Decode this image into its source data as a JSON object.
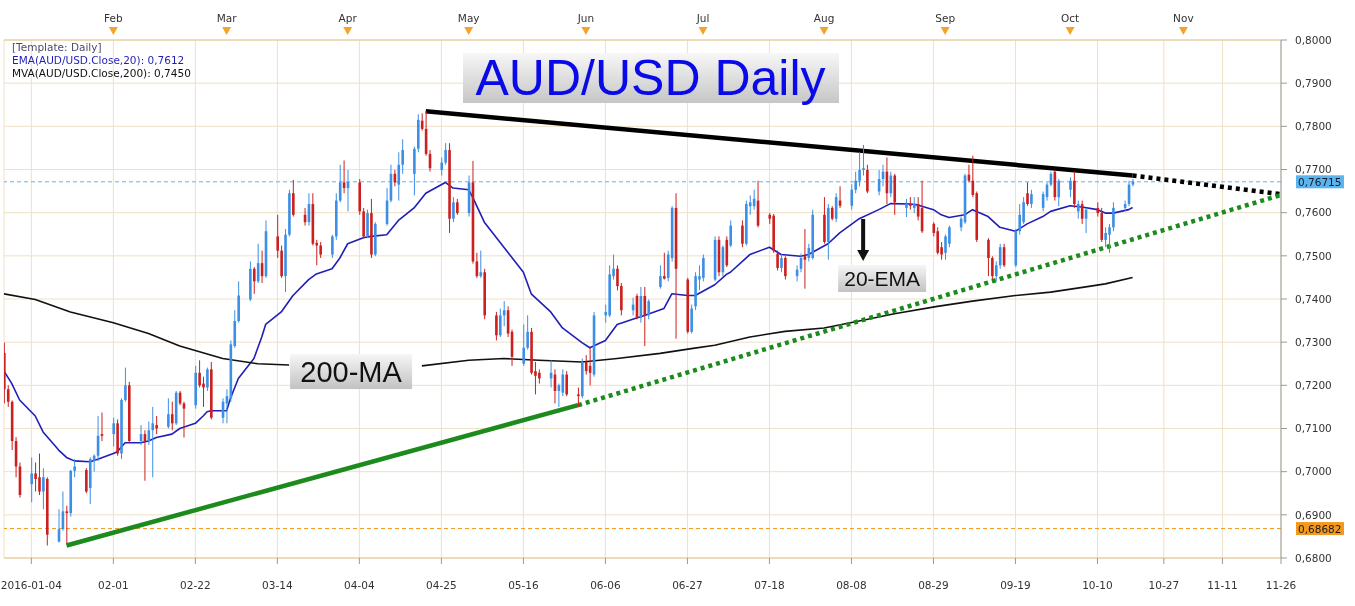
{
  "chart_data": {
    "type": "candlestick",
    "title": "AUD/USD Daily",
    "legend_title": "[Template: Daily]",
    "legend": "top left",
    "x": [
      "2016-01-04",
      "2016-01-05",
      "2016-01-06",
      "2016-01-07",
      "2016-01-08",
      "2016-01-11",
      "2016-01-12",
      "2016-01-13",
      "2016-01-14",
      "2016-01-15",
      "2016-01-18",
      "2016-01-19",
      "2016-01-20",
      "2016-01-21",
      "2016-01-22",
      "2016-01-25",
      "2016-01-26",
      "2016-01-27",
      "2016-01-28",
      "2016-01-29",
      "2016-02-01",
      "2016-02-02",
      "2016-02-03",
      "2016-02-04",
      "2016-02-05",
      "2016-02-08",
      "2016-02-09",
      "2016-02-10",
      "2016-02-11",
      "2016-02-12",
      "2016-02-15",
      "2016-02-16",
      "2016-02-17",
      "2016-02-18",
      "2016-02-19",
      "2016-02-22",
      "2016-02-23",
      "2016-02-24",
      "2016-02-25",
      "2016-02-26",
      "2016-02-29",
      "2016-03-01",
      "2016-03-02",
      "2016-03-03",
      "2016-03-04",
      "2016-03-07",
      "2016-03-08",
      "2016-03-09",
      "2016-03-10",
      "2016-03-11",
      "2016-03-14",
      "2016-03-15",
      "2016-03-16",
      "2016-03-17",
      "2016-03-18",
      "2016-03-21",
      "2016-03-22",
      "2016-03-23",
      "2016-03-24",
      "2016-03-25",
      "2016-03-28",
      "2016-03-29",
      "2016-03-30",
      "2016-03-31",
      "2016-04-01",
      "2016-04-04",
      "2016-04-05",
      "2016-04-06",
      "2016-04-07",
      "2016-04-08",
      "2016-04-11",
      "2016-04-12",
      "2016-04-13",
      "2016-04-14",
      "2016-04-15",
      "2016-04-18",
      "2016-04-19",
      "2016-04-20",
      "2016-04-21",
      "2016-04-22",
      "2016-04-25",
      "2016-04-26",
      "2016-04-27",
      "2016-04-28",
      "2016-04-29",
      "2016-05-02",
      "2016-05-03",
      "2016-05-04",
      "2016-05-05",
      "2016-05-06",
      "2016-05-09",
      "2016-05-10",
      "2016-05-11",
      "2016-05-12",
      "2016-05-13",
      "2016-05-16",
      "2016-05-17",
      "2016-05-18",
      "2016-05-19",
      "2016-05-20",
      "2016-05-23",
      "2016-05-24",
      "2016-05-25",
      "2016-05-26",
      "2016-05-27",
      "2016-05-30",
      "2016-05-31",
      "2016-06-01",
      "2016-06-02",
      "2016-06-03",
      "2016-06-06",
      "2016-06-07",
      "2016-06-08",
      "2016-06-09",
      "2016-06-10",
      "2016-06-13",
      "2016-06-14",
      "2016-06-15",
      "2016-06-16",
      "2016-06-17",
      "2016-06-20",
      "2016-06-21",
      "2016-06-22",
      "2016-06-23",
      "2016-06-24",
      "2016-06-27",
      "2016-06-28",
      "2016-06-29",
      "2016-06-30",
      "2016-07-01",
      "2016-07-04",
      "2016-07-05",
      "2016-07-06",
      "2016-07-07",
      "2016-07-08",
      "2016-07-11",
      "2016-07-12",
      "2016-07-13",
      "2016-07-14",
      "2016-07-15",
      "2016-07-18",
      "2016-07-19",
      "2016-07-20",
      "2016-07-21",
      "2016-07-22",
      "2016-07-25",
      "2016-07-26",
      "2016-07-27",
      "2016-07-28",
      "2016-07-29",
      "2016-08-01",
      "2016-08-02",
      "2016-08-03",
      "2016-08-04",
      "2016-08-05",
      "2016-08-08",
      "2016-08-09",
      "2016-08-10",
      "2016-08-11",
      "2016-08-12",
      "2016-08-15",
      "2016-08-16",
      "2016-08-17",
      "2016-08-18",
      "2016-08-19",
      "2016-08-22",
      "2016-08-23",
      "2016-08-24",
      "2016-08-25",
      "2016-08-26",
      "2016-08-29",
      "2016-08-30",
      "2016-08-31",
      "2016-09-01",
      "2016-09-02",
      "2016-09-05",
      "2016-09-06",
      "2016-09-07",
      "2016-09-08",
      "2016-09-09",
      "2016-09-12",
      "2016-09-13",
      "2016-09-14",
      "2016-09-15",
      "2016-09-16",
      "2016-09-19",
      "2016-09-20",
      "2016-09-21",
      "2016-09-22",
      "2016-09-23",
      "2016-09-26",
      "2016-09-27",
      "2016-09-28",
      "2016-09-29",
      "2016-09-30",
      "2016-10-03",
      "2016-10-04",
      "2016-10-05",
      "2016-10-06",
      "2016-10-07",
      "2016-10-10",
      "2016-10-11",
      "2016-10-12",
      "2016-10-13",
      "2016-10-14",
      "2016-10-17",
      "2016-10-18",
      "2016-10-19"
    ],
    "ohlc": [
      [
        0.7275,
        0.7299,
        0.7158,
        0.7191
      ],
      [
        0.7191,
        0.72,
        0.715,
        0.7162
      ],
      [
        0.7162,
        0.7165,
        0.705,
        0.7071
      ],
      [
        0.7071,
        0.708,
        0.6987,
        0.7012
      ],
      [
        0.7012,
        0.7021,
        0.694,
        0.6946
      ],
      [
        0.6971,
        0.7033,
        0.6929,
        0.6996
      ],
      [
        0.6996,
        0.7021,
        0.6954,
        0.6983
      ],
      [
        0.6987,
        0.7042,
        0.6946,
        0.6954
      ],
      [
        0.6954,
        0.7008,
        0.6913,
        0.6987
      ],
      [
        0.6983,
        0.6987,
        0.6829,
        0.6854
      ],
      [
        0.6838,
        0.6913,
        0.6836,
        0.6867
      ],
      [
        0.6867,
        0.6954,
        0.6863,
        0.6908
      ],
      [
        0.6908,
        0.6921,
        0.6833,
        0.6904
      ],
      [
        0.6904,
        0.7004,
        0.6896,
        0.7002
      ],
      [
        0.7002,
        0.7029,
        0.6987,
        0.7012
      ],
      [
        0.7004,
        0.7008,
        0.695,
        0.6954
      ],
      [
        0.6962,
        0.7033,
        0.6925,
        0.7029
      ],
      [
        0.7025,
        0.704,
        0.7,
        0.7037
      ],
      [
        0.7037,
        0.7129,
        0.7025,
        0.7083
      ],
      [
        0.7087,
        0.7137,
        0.7071,
        0.7083
      ],
      [
        0.7087,
        0.7125,
        0.7058,
        0.7112
      ],
      [
        0.7112,
        0.7121,
        0.7037,
        0.7042
      ],
      [
        0.7042,
        0.717,
        0.7029,
        0.7166
      ],
      [
        0.7166,
        0.7241,
        0.7162,
        0.72
      ],
      [
        0.72,
        0.7208,
        0.7067,
        0.7071
      ],
      [
        0.7071,
        0.7108,
        0.7062,
        0.7087
      ],
      [
        0.7087,
        0.7096,
        0.6979,
        0.7071
      ],
      [
        0.7071,
        0.7116,
        0.7062,
        0.7096
      ],
      [
        0.7096,
        0.715,
        0.6987,
        0.7112
      ],
      [
        0.7108,
        0.7129,
        0.7087,
        0.71
      ],
      [
        0.7104,
        0.717,
        0.71,
        0.7133
      ],
      [
        0.7133,
        0.7162,
        0.7096,
        0.7112
      ],
      [
        0.7112,
        0.7187,
        0.7108,
        0.7183
      ],
      [
        0.7183,
        0.7187,
        0.7154,
        0.7158
      ],
      [
        0.7158,
        0.7162,
        0.7079,
        0.7146
      ],
      [
        0.7154,
        0.7245,
        0.7146,
        0.7229
      ],
      [
        0.7229,
        0.7258,
        0.7195,
        0.72
      ],
      [
        0.7204,
        0.722,
        0.715,
        0.7195
      ],
      [
        0.7195,
        0.7241,
        0.7187,
        0.7237
      ],
      [
        0.7237,
        0.7254,
        0.7121,
        0.7125
      ],
      [
        0.7125,
        0.717,
        0.7112,
        0.7162
      ],
      [
        0.7158,
        0.7191,
        0.7112,
        0.7175
      ],
      [
        0.717,
        0.7304,
        0.7162,
        0.7295
      ],
      [
        0.7291,
        0.7374,
        0.7287,
        0.7349
      ],
      [
        0.7349,
        0.7441,
        0.7345,
        0.7408
      ],
      [
        0.7399,
        0.7487,
        0.7395,
        0.747
      ],
      [
        0.747,
        0.7474,
        0.7412,
        0.7441
      ],
      [
        0.7441,
        0.7528,
        0.7437,
        0.7483
      ],
      [
        0.7483,
        0.7512,
        0.7437,
        0.7453
      ],
      [
        0.7453,
        0.7582,
        0.7449,
        0.7557
      ],
      [
        0.7545,
        0.7595,
        0.7495,
        0.7512
      ],
      [
        0.7512,
        0.7524,
        0.7449,
        0.7453
      ],
      [
        0.7453,
        0.7562,
        0.7416,
        0.7549
      ],
      [
        0.7549,
        0.7653,
        0.7545,
        0.7645
      ],
      [
        0.7645,
        0.7676,
        0.7591,
        0.7595
      ],
      [
        0.7595,
        0.7611,
        0.757,
        0.7578
      ],
      [
        0.7578,
        0.7645,
        0.757,
        0.762
      ],
      [
        0.762,
        0.7645,
        0.7524,
        0.7528
      ],
      [
        0.753,
        0.7537,
        0.7478,
        0.7524
      ],
      [
        0.7524,
        0.7532,
        0.7495,
        0.7503
      ],
      [
        0.7503,
        0.7549,
        0.7495,
        0.7545
      ],
      [
        0.7545,
        0.7645,
        0.7537,
        0.7628
      ],
      [
        0.7628,
        0.7711,
        0.7624,
        0.767
      ],
      [
        0.767,
        0.7721,
        0.7645,
        0.7657
      ],
      [
        0.7657,
        0.7699,
        0.7603,
        0.7671
      ],
      [
        0.767,
        0.7678,
        0.7595,
        0.7603
      ],
      [
        0.7603,
        0.7611,
        0.7541,
        0.7545
      ],
      [
        0.7545,
        0.7607,
        0.7541,
        0.7599
      ],
      [
        0.7599,
        0.7632,
        0.7495,
        0.7503
      ],
      [
        0.7503,
        0.7578,
        0.7499,
        0.7574
      ],
      [
        0.7574,
        0.7657,
        0.757,
        0.7628
      ],
      [
        0.7628,
        0.7711,
        0.7624,
        0.769
      ],
      [
        0.769,
        0.7699,
        0.7661,
        0.767
      ],
      [
        0.7665,
        0.774,
        0.7628,
        0.7711
      ],
      [
        0.7711,
        0.777,
        0.769,
        0.7745
      ],
      [
        0.769,
        0.7753,
        0.764,
        0.7748
      ],
      [
        0.7748,
        0.7828,
        0.774,
        0.7815
      ],
      [
        0.7813,
        0.783,
        0.779,
        0.7794
      ],
      [
        0.7794,
        0.7835,
        0.7732,
        0.7736
      ],
      [
        0.7736,
        0.7745,
        0.7695,
        0.7703
      ],
      [
        0.7699,
        0.7728,
        0.7686,
        0.7716
      ],
      [
        0.7716,
        0.7761,
        0.7711,
        0.7745
      ],
      [
        0.7745,
        0.7761,
        0.7553,
        0.7586
      ],
      [
        0.7586,
        0.7636,
        0.7578,
        0.7624
      ],
      [
        0.7624,
        0.7632,
        0.7595,
        0.7599
      ],
      [
        0.7599,
        0.7686,
        0.7591,
        0.767
      ],
      [
        0.767,
        0.772,
        0.7482,
        0.7487
      ],
      [
        0.7487,
        0.7507,
        0.7449,
        0.7453
      ],
      [
        0.7453,
        0.7512,
        0.7449,
        0.7462
      ],
      [
        0.7462,
        0.747,
        0.7353,
        0.7362
      ],
      [
        0.7362,
        0.737,
        0.7304,
        0.7316
      ],
      [
        0.7316,
        0.7378,
        0.7312,
        0.7362
      ],
      [
        0.7362,
        0.7395,
        0.7337,
        0.7374
      ],
      [
        0.7374,
        0.7383,
        0.7312,
        0.732
      ],
      [
        0.7324,
        0.7329,
        0.7245,
        0.7266
      ],
      [
        0.725,
        0.7341,
        0.7245,
        0.7287
      ],
      [
        0.7287,
        0.7362,
        0.7283,
        0.7324
      ],
      [
        0.7324,
        0.7333,
        0.7225,
        0.7229
      ],
      [
        0.7233,
        0.7254,
        0.7179,
        0.7222
      ],
      [
        0.7229,
        0.7237,
        0.7204,
        0.7216
      ],
      [
        0.7216,
        0.7258,
        0.7195,
        0.7229
      ],
      [
        0.7225,
        0.7237,
        0.7158,
        0.7187
      ],
      [
        0.7187,
        0.7204,
        0.715,
        0.72
      ],
      [
        0.7183,
        0.7237,
        0.7175,
        0.7225
      ],
      [
        0.7225,
        0.7233,
        0.7175,
        0.7179
      ],
      [
        0.7179,
        0.7195,
        0.715,
        0.7175
      ],
      [
        0.7175,
        0.7262,
        0.717,
        0.7254
      ],
      [
        0.7254,
        0.727,
        0.7225,
        0.7233
      ],
      [
        0.7245,
        0.7287,
        0.72,
        0.7229
      ],
      [
        0.7225,
        0.737,
        0.722,
        0.7362
      ],
      [
        0.7362,
        0.7387,
        0.7345,
        0.737
      ],
      [
        0.7362,
        0.7478,
        0.7358,
        0.7457
      ],
      [
        0.7453,
        0.7503,
        0.7445,
        0.747
      ],
      [
        0.747,
        0.7478,
        0.742,
        0.743
      ],
      [
        0.743,
        0.7437,
        0.7362,
        0.7374
      ],
      [
        0.7374,
        0.7403,
        0.7362,
        0.7387
      ],
      [
        0.7407,
        0.7412,
        0.7353,
        0.7357
      ],
      [
        0.7357,
        0.7428,
        0.7345,
        0.7407
      ],
      [
        0.7407,
        0.7428,
        0.7291,
        0.7362
      ],
      [
        0.7362,
        0.7399,
        0.7353,
        0.7395
      ],
      [
        0.7428,
        0.7478,
        0.7424,
        0.7453
      ],
      [
        0.7453,
        0.7507,
        0.7445,
        0.7447
      ],
      [
        0.7449,
        0.7512,
        0.7441,
        0.7503
      ],
      [
        0.7495,
        0.7615,
        0.7487,
        0.7611
      ],
      [
        0.7611,
        0.7645,
        0.7308,
        0.747
      ],
      [
        0.7445,
        0.7449,
        0.732,
        0.7324
      ],
      [
        0.7324,
        0.7387,
        0.732,
        0.7378
      ],
      [
        0.7383,
        0.7462,
        0.7374,
        0.7453
      ],
      [
        0.7445,
        0.7478,
        0.742,
        0.7453
      ],
      [
        0.7449,
        0.7503,
        0.7441,
        0.7495
      ],
      [
        0.7445,
        0.7545,
        0.7441,
        0.7537
      ],
      [
        0.7537,
        0.7545,
        0.7453,
        0.7462
      ],
      [
        0.7462,
        0.7524,
        0.7453,
        0.752
      ],
      [
        0.7537,
        0.7545,
        0.7474,
        0.7478
      ],
      [
        0.7524,
        0.7582,
        0.752,
        0.757
      ],
      [
        0.757,
        0.7582,
        0.752,
        0.7528
      ],
      [
        0.7528,
        0.7628,
        0.7524,
        0.762
      ],
      [
        0.7615,
        0.764,
        0.7595,
        0.7624
      ],
      [
        0.7615,
        0.7653,
        0.7607,
        0.7632
      ],
      [
        0.7628,
        0.7674,
        0.7566,
        0.757
      ],
      [
        0.7595,
        0.7599,
        0.7574,
        0.7586
      ],
      [
        0.7593,
        0.7597,
        0.7507,
        0.7512
      ],
      [
        0.7505,
        0.7512,
        0.7466,
        0.7472
      ],
      [
        0.7472,
        0.7503,
        0.7462,
        0.7495
      ],
      [
        0.7495,
        0.7499,
        0.7445,
        0.7453
      ],
      [
        0.7453,
        0.7478,
        0.7441,
        0.7468
      ],
      [
        0.747,
        0.7505,
        0.7462,
        0.7495
      ],
      [
        0.7499,
        0.7562,
        0.7424,
        0.7491
      ],
      [
        0.7495,
        0.7528,
        0.7487,
        0.7518
      ],
      [
        0.7495,
        0.7607,
        0.7491,
        0.7595
      ],
      [
        0.7595,
        0.7636,
        0.7528,
        0.7532
      ],
      [
        0.7532,
        0.762,
        0.7491,
        0.7611
      ],
      [
        0.7611,
        0.7615,
        0.7582,
        0.7586
      ],
      [
        0.7586,
        0.7645,
        0.7578,
        0.7636
      ],
      [
        0.7628,
        0.7661,
        0.7611,
        0.7616
      ],
      [
        0.7616,
        0.7666,
        0.7607,
        0.7653
      ],
      [
        0.7653,
        0.7695,
        0.7645,
        0.7674
      ],
      [
        0.7674,
        0.774,
        0.7661,
        0.7699
      ],
      [
        0.7699,
        0.7757,
        0.7686,
        0.7703
      ],
      [
        0.7699,
        0.7711,
        0.7645,
        0.7649
      ],
      [
        0.7649,
        0.7699,
        0.764,
        0.7678
      ],
      [
        0.7678,
        0.7711,
        0.7661,
        0.7695
      ],
      [
        0.7695,
        0.7728,
        0.762,
        0.7645
      ],
      [
        0.7645,
        0.7695,
        0.7636,
        0.7686
      ],
      [
        0.7686,
        0.769,
        0.7595,
        0.7624
      ],
      [
        0.7611,
        0.7632,
        0.759,
        0.762
      ],
      [
        0.762,
        0.7636,
        0.7607,
        0.7616
      ],
      [
        0.7611,
        0.7636,
        0.7599,
        0.762
      ],
      [
        0.762,
        0.7636,
        0.7582,
        0.7591
      ],
      [
        0.7611,
        0.7674,
        0.7553,
        0.7557
      ],
      [
        0.7574,
        0.7578,
        0.7545,
        0.7553
      ],
      [
        0.7557,
        0.7566,
        0.7503,
        0.7507
      ],
      [
        0.752,
        0.7532,
        0.7491,
        0.7503
      ],
      [
        0.7507,
        0.7549,
        0.7491,
        0.7545
      ],
      [
        0.7528,
        0.757,
        0.752,
        0.7566
      ],
      [
        0.7566,
        0.7591,
        0.7557,
        0.7586
      ],
      [
        0.7578,
        0.769,
        0.7574,
        0.7686
      ],
      [
        0.7688,
        0.7711,
        0.767,
        0.7674
      ],
      [
        0.7674,
        0.7732,
        0.7636,
        0.7641
      ],
      [
        0.7645,
        0.7649,
        0.7532,
        0.7537
      ],
      [
        0.7537,
        0.7541,
        0.7453,
        0.7495
      ],
      [
        0.7495,
        0.7499,
        0.7445,
        0.7453
      ],
      [
        0.7453,
        0.7487,
        0.7441,
        0.7478
      ],
      [
        0.7478,
        0.7528,
        0.747,
        0.752
      ],
      [
        0.752,
        0.7528,
        0.7474,
        0.7478
      ],
      [
        0.7478,
        0.7562,
        0.7474,
        0.7557
      ],
      [
        0.7557,
        0.762,
        0.7549,
        0.7595
      ],
      [
        0.7578,
        0.7636,
        0.7574,
        0.7624
      ],
      [
        0.7645,
        0.767,
        0.7616,
        0.762
      ],
      [
        0.762,
        0.7653,
        0.7611,
        0.7643
      ],
      [
        0.7611,
        0.7649,
        0.7603,
        0.7643
      ],
      [
        0.7636,
        0.767,
        0.7628,
        0.7665
      ],
      [
        0.7665,
        0.7695,
        0.7661,
        0.769
      ],
      [
        0.7695,
        0.7699,
        0.7628,
        0.7636
      ],
      [
        0.7636,
        0.7678,
        0.7615,
        0.7674
      ],
      [
        0.7653,
        0.7682,
        0.7636,
        0.7674
      ],
      [
        0.7674,
        0.7695,
        0.7611,
        0.762
      ],
      [
        0.7603,
        0.7628,
        0.7586,
        0.762
      ],
      [
        0.762,
        0.7628,
        0.7574,
        0.7586
      ],
      [
        0.7586,
        0.7611,
        0.7553,
        0.7607
      ],
      [
        0.7611,
        0.7624,
        0.7591,
        0.7599
      ],
      [
        0.7599,
        0.7611,
        0.7532,
        0.7537
      ],
      [
        0.7537,
        0.7566,
        0.752,
        0.7553
      ],
      [
        0.7549,
        0.7574,
        0.7507,
        0.7566
      ],
      [
        0.7566,
        0.7624,
        0.7557,
        0.7611
      ],
      [
        0.7611,
        0.7628,
        0.7603,
        0.762
      ],
      [
        0.762,
        0.7674,
        0.7615,
        0.7665
      ],
      [
        0.7665,
        0.7678,
        0.7661,
        0.7672
      ]
    ],
    "colors": [
      "#cc1f1f",
      "#cc1f1f",
      "#cc1f1f",
      "#cc1f1f",
      "#cc1f1f",
      "#3b8fe6",
      "#cc1f1f",
      "#cc1f1f",
      "#3b8fe6",
      "#cc1f1f",
      "#3b8fe6",
      "#3b8fe6",
      "#cc1f1f",
      "#3b8fe6",
      "#3b8fe6",
      "#cc1f1f",
      "#3b8fe6",
      "#3b8fe6",
      "#3b8fe6",
      "#cc1f1f",
      "#3b8fe6",
      "#cc1f1f",
      "#3b8fe6",
      "#3b8fe6",
      "#cc1f1f",
      "#3b8fe6",
      "#cc1f1f",
      "#3b8fe6",
      "#3b8fe6",
      "#cc1f1f",
      "#3b8fe6",
      "#cc1f1f",
      "#3b8fe6",
      "#cc1f1f",
      "#cc1f1f",
      "#3b8fe6",
      "#cc1f1f",
      "#cc1f1f",
      "#3b8fe6",
      "#cc1f1f",
      "#3b8fe6",
      "#3b8fe6",
      "#3b8fe6",
      "#3b8fe6",
      "#3b8fe6",
      "#3b8fe6",
      "#cc1f1f",
      "#3b8fe6",
      "#cc1f1f",
      "#3b8fe6",
      "#cc1f1f",
      "#cc1f1f",
      "#3b8fe6",
      "#3b8fe6",
      "#cc1f1f",
      "#cc1f1f",
      "#3b8fe6",
      "#cc1f1f",
      "#cc1f1f",
      "#cc1f1f",
      "#3b8fe6",
      "#3b8fe6",
      "#3b8fe6",
      "#cc1f1f",
      "#3b8fe6",
      "#cc1f1f",
      "#cc1f1f",
      "#3b8fe6",
      "#cc1f1f",
      "#3b8fe6",
      "#3b8fe6",
      "#3b8fe6",
      "#cc1f1f",
      "#3b8fe6",
      "#3b8fe6",
      "#3b8fe6",
      "#3b8fe6",
      "#cc1f1f",
      "#cc1f1f",
      "#cc1f1f",
      "#3b8fe6",
      "#3b8fe6",
      "#cc1f1f",
      "#3b8fe6",
      "#cc1f1f",
      "#3b8fe6",
      "#cc1f1f",
      "#cc1f1f",
      "#3b8fe6",
      "#cc1f1f",
      "#cc1f1f",
      "#3b8fe6",
      "#3b8fe6",
      "#cc1f1f",
      "#cc1f1f",
      "#3b8fe6",
      "#3b8fe6",
      "#cc1f1f",
      "#cc1f1f",
      "#cc1f1f",
      "#3b8fe6",
      "#cc1f1f",
      "#3b8fe6",
      "#3b8fe6",
      "#cc1f1f",
      "#cc1f1f",
      "#3b8fe6",
      "#cc1f1f",
      "#cc1f1f",
      "#3b8fe6",
      "#3b8fe6",
      "#3b8fe6",
      "#3b8fe6",
      "#cc1f1f",
      "#cc1f1f",
      "#3b8fe6",
      "#cc1f1f",
      "#3b8fe6",
      "#cc1f1f",
      "#3b8fe6",
      "#3b8fe6",
      "#cc1f1f",
      "#3b8fe6",
      "#3b8fe6",
      "#cc1f1f",
      "#cc1f1f",
      "#3b8fe6",
      "#3b8fe6",
      "#3b8fe6",
      "#3b8fe6",
      "#3b8fe6",
      "#cc1f1f",
      "#3b8fe6",
      "#cc1f1f",
      "#3b8fe6",
      "#cc1f1f",
      "#3b8fe6",
      "#3b8fe6",
      "#3b8fe6",
      "#cc1f1f",
      "#cc1f1f",
      "#cc1f1f",
      "#cc1f1f",
      "#3b8fe6",
      "#cc1f1f",
      "#3b8fe6",
      "#3b8fe6",
      "#cc1f1f",
      "#3b8fe6",
      "#3b8fe6",
      "#cc1f1f",
      "#3b8fe6",
      "#cc1f1f",
      "#3b8fe6",
      "#cc1f1f",
      "#3b8fe6",
      "#3b8fe6",
      "#3b8fe6",
      "#3b8fe6",
      "#cc1f1f",
      "#3b8fe6",
      "#3b8fe6",
      "#cc1f1f",
      "#3b8fe6",
      "#cc1f1f",
      "#3b8fe6",
      "#cc1f1f",
      "#3b8fe6",
      "#cc1f1f",
      "#cc1f1f",
      "#cc1f1f",
      "#cc1f1f",
      "#cc1f1f",
      "#3b8fe6",
      "#3b8fe6",
      "#3b8fe6",
      "#3b8fe6",
      "#cc1f1f",
      "#cc1f1f",
      "#cc1f1f",
      "#cc1f1f",
      "#cc1f1f",
      "#3b8fe6",
      "#3b8fe6",
      "#cc1f1f",
      "#3b8fe6",
      "#3b8fe6",
      "#3b8fe6",
      "#cc1f1f",
      "#3b8fe6",
      "#3b8fe6",
      "#3b8fe6",
      "#3b8fe6",
      "#cc1f1f",
      "#3b8fe6",
      "#3b8fe6",
      "#cc1f1f",
      "#3b8fe6",
      "#cc1f1f",
      "#3b8fe6",
      "#cc1f1f",
      "#cc1f1f",
      "#3b8fe6",
      "#3b8fe6",
      "#3b8fe6",
      "#3b8fe6",
      "#3b8fe6",
      "#3b8fe6"
    ],
    "series": [
      {
        "name": "EMA(AUD/USD.Close,20): 0,7612",
        "type": "line",
        "color": "#1f1fb8",
        "x": [
          "2016-01-04",
          "2016-01-06",
          "2016-01-08",
          "2016-01-12",
          "2016-01-14",
          "2016-01-18",
          "2016-01-20",
          "2016-01-22",
          "2016-01-26",
          "2016-01-28",
          "2016-02-01",
          "2016-02-02",
          "2016-02-04",
          "2016-02-08",
          "2016-02-10",
          "2016-02-12",
          "2016-02-16",
          "2016-02-18",
          "2016-02-22",
          "2016-02-24",
          "2016-02-25",
          "2016-02-26",
          "2016-03-01",
          "2016-03-02",
          "2016-03-04",
          "2016-03-08",
          "2016-03-10",
          "2016-03-11",
          "2016-03-15",
          "2016-03-18",
          "2016-03-22",
          "2016-03-24",
          "2016-03-28",
          "2016-03-30",
          "2016-04-01",
          "2016-04-05",
          "2016-04-07",
          "2016-04-11",
          "2016-04-14",
          "2016-04-18",
          "2016-04-21",
          "2016-04-26",
          "2016-04-28",
          "2016-05-02",
          "2016-05-03",
          "2016-05-06",
          "2016-05-11",
          "2016-05-16",
          "2016-05-18",
          "2016-05-23",
          "2016-05-26",
          "2016-05-31",
          "2016-06-02",
          "2016-06-06",
          "2016-06-09",
          "2016-06-13",
          "2016-06-16",
          "2016-06-21",
          "2016-06-23",
          "2016-06-27",
          "2016-06-29",
          "2016-07-04",
          "2016-07-07",
          "2016-07-08",
          "2016-07-13",
          "2016-07-18",
          "2016-07-21",
          "2016-07-26",
          "2016-07-28",
          "2016-08-02",
          "2016-08-05",
          "2016-08-10",
          "2016-08-15",
          "2016-08-18",
          "2016-08-23",
          "2016-08-25",
          "2016-08-29",
          "2016-08-31",
          "2016-09-02",
          "2016-09-06",
          "2016-09-08",
          "2016-09-12",
          "2016-09-15",
          "2016-09-19",
          "2016-09-22",
          "2016-09-26",
          "2016-09-28",
          "2016-10-03",
          "2016-10-06",
          "2016-10-10",
          "2016-10-12",
          "2016-10-14",
          "2016-10-18",
          "2016-10-19"
        ],
        "values": [
          0.7233,
          0.7204,
          0.7166,
          0.7129,
          0.7092,
          0.705,
          0.7033,
          0.7025,
          0.7023,
          0.7029,
          0.7042,
          0.7046,
          0.7067,
          0.7067,
          0.7071,
          0.7079,
          0.7087,
          0.71,
          0.7112,
          0.7129,
          0.7139,
          0.7141,
          0.7141,
          0.717,
          0.7216,
          0.7262,
          0.7312,
          0.7341,
          0.737,
          0.7408,
          0.7445,
          0.7458,
          0.747,
          0.7495,
          0.7528,
          0.7542,
          0.7545,
          0.7549,
          0.7582,
          0.7611,
          0.7645,
          0.767,
          0.7657,
          0.7653,
          0.7636,
          0.7578,
          0.752,
          0.7462,
          0.7412,
          0.737,
          0.7333,
          0.7299,
          0.7287,
          0.7304,
          0.7341,
          0.7353,
          0.7362,
          0.7378,
          0.7412,
          0.7408,
          0.7408,
          0.7433,
          0.7457,
          0.7462,
          0.7503,
          0.752,
          0.7503,
          0.7499,
          0.7503,
          0.7528,
          0.7553,
          0.7586,
          0.7607,
          0.7621,
          0.762,
          0.7618,
          0.7607,
          0.7595,
          0.7589,
          0.7595,
          0.7607,
          0.7591,
          0.7566,
          0.7557,
          0.7574,
          0.7591,
          0.7603,
          0.7616,
          0.7613,
          0.7607,
          0.7599,
          0.7599,
          0.7607,
          0.7612
        ]
      },
      {
        "name": "MVA(AUD/USD.Close,200): 0,7450",
        "type": "line",
        "color": "#111111",
        "x": [
          "2016-01-04",
          "2016-01-12",
          "2016-01-21",
          "2016-02-01",
          "2016-02-10",
          "2016-02-18",
          "2016-02-29",
          "2016-03-09",
          "2016-03-17",
          "2016-04-04",
          "2016-04-20",
          "2016-05-02",
          "2016-05-11",
          "2016-05-20",
          "2016-05-31",
          "2016-06-09",
          "2016-06-20",
          "2016-06-28",
          "2016-07-04",
          "2016-07-13",
          "2016-07-22",
          "2016-08-01",
          "2016-08-10",
          "2016-08-19",
          "2016-08-30",
          "2016-09-08",
          "2016-09-19",
          "2016-09-28",
          "2016-10-07",
          "2016-10-12",
          "2016-10-19"
        ],
        "values": [
          0.7412,
          0.7399,
          0.737,
          0.7345,
          0.732,
          0.7291,
          0.7262,
          0.725,
          0.7247,
          null,
          0.7245,
          0.7258,
          0.7262,
          0.7258,
          0.7254,
          0.7262,
          0.7274,
          0.7285,
          0.7293,
          0.7312,
          0.7325,
          0.7333,
          0.7349,
          0.7366,
          0.7383,
          0.7395,
          0.7408,
          0.7416,
          0.7428,
          0.7435,
          0.745
        ]
      },
      {
        "type": "line",
        "color": "#000000",
        "line_style": "solid",
        "x": [
          "2016-04-21",
          "2016-10-19"
        ],
        "values": [
          0.7835,
          0.7686
        ]
      },
      {
        "type": "line",
        "color": "#000000",
        "line_style": "dotted",
        "x": [
          "2016-10-19",
          "2016-11-26"
        ],
        "values": [
          0.7686,
          0.7643
        ]
      },
      {
        "type": "line",
        "color": "#1c8a1c",
        "line_style": "solid",
        "x": [
          "2016-01-20",
          "2016-05-30"
        ],
        "values": [
          0.6829,
          0.7154
        ]
      },
      {
        "type": "line",
        "color": "#1c8a1c",
        "line_style": "dotted",
        "x": [
          "2016-05-30",
          "2016-11-26"
        ],
        "values": [
          0.7154,
          0.7641
        ]
      }
    ],
    "xlim": [
      "2016-01-04",
      "2016-11-26"
    ],
    "xticks": [
      {
        "value": "2016-01-11",
        "label": "2016-01-04"
      },
      {
        "value": "2016-02-01",
        "label": "02-01"
      },
      {
        "value": "2016-02-22",
        "label": "02-22"
      },
      {
        "value": "2016-03-14",
        "label": "03-14"
      },
      {
        "value": "2016-04-04",
        "label": "04-04"
      },
      {
        "value": "2016-04-25",
        "label": "04-25"
      },
      {
        "value": "2016-05-16",
        "label": "05-16"
      },
      {
        "value": "2016-06-06",
        "label": "06-06"
      },
      {
        "value": "2016-06-27",
        "label": "06-27"
      },
      {
        "value": "2016-07-18",
        "label": "07-18"
      },
      {
        "value": "2016-08-08",
        "label": "08-08"
      },
      {
        "value": "2016-08-29",
        "label": "08-29"
      },
      {
        "value": "2016-09-19",
        "label": "09-19"
      },
      {
        "value": "2016-10-10",
        "label": "10-10"
      },
      {
        "value": "2016-10-27",
        "label": "10-27"
      },
      {
        "value": "2016-11-11",
        "label": "11-11"
      },
      {
        "value": "2016-11-26",
        "label": "11-26"
      }
    ],
    "x2lim": [
      "2016-01-04",
      "2016-11-26"
    ],
    "x2ticks": [
      {
        "value": "2016-02-01",
        "label": "Feb"
      },
      {
        "value": "2016-03-01",
        "label": "Mar"
      },
      {
        "value": "2016-04-01",
        "label": "Apr"
      },
      {
        "value": "2016-05-02",
        "label": "May"
      },
      {
        "value": "2016-06-01",
        "label": "Jun"
      },
      {
        "value": "2016-07-01",
        "label": "Jul"
      },
      {
        "value": "2016-08-01",
        "label": "Aug"
      },
      {
        "value": "2016-09-01",
        "label": "Sep"
      },
      {
        "value": "2016-10-03",
        "label": "Oct"
      },
      {
        "value": "2016-11-01",
        "label": "Nov"
      }
    ],
    "ylim": [
      0.68,
      0.8
    ],
    "yticks": [
      {
        "value": 0.68,
        "label": "0,6800"
      },
      {
        "value": 0.69,
        "label": "0,6900"
      },
      {
        "value": 0.7,
        "label": "0,7000"
      },
      {
        "value": 0.71,
        "label": "0,7100"
      },
      {
        "value": 0.72,
        "label": "0,7200"
      },
      {
        "value": 0.73,
        "label": "0,7300"
      },
      {
        "value": 0.74,
        "label": "0,7400"
      },
      {
        "value": 0.75,
        "label": "0,7500"
      },
      {
        "value": 0.76,
        "label": "0,7600"
      },
      {
        "value": 0.77,
        "label": "0,7700"
      },
      {
        "value": 0.78,
        "label": "0,7800"
      },
      {
        "value": 0.79,
        "label": "0,7900"
      },
      {
        "value": 0.8,
        "label": "0,8000"
      }
    ],
    "grid": true,
    "ref_lines": [
      {
        "axis": "y",
        "value": 0.76715,
        "label": "0,76715",
        "color": "#5ab4ee",
        "line_style": "dashed"
      },
      {
        "axis": "y",
        "value": 0.68682,
        "label": "0,68682",
        "color": "#f39a1e",
        "line_style": "dashed"
      }
    ],
    "annotations": [
      {
        "text": "200-MA",
        "x": "2016-03-17",
        "y": 0.7247
      },
      {
        "text": "20-EMA",
        "x": "2016-08-11",
        "y": 0.759
      }
    ]
  }
}
